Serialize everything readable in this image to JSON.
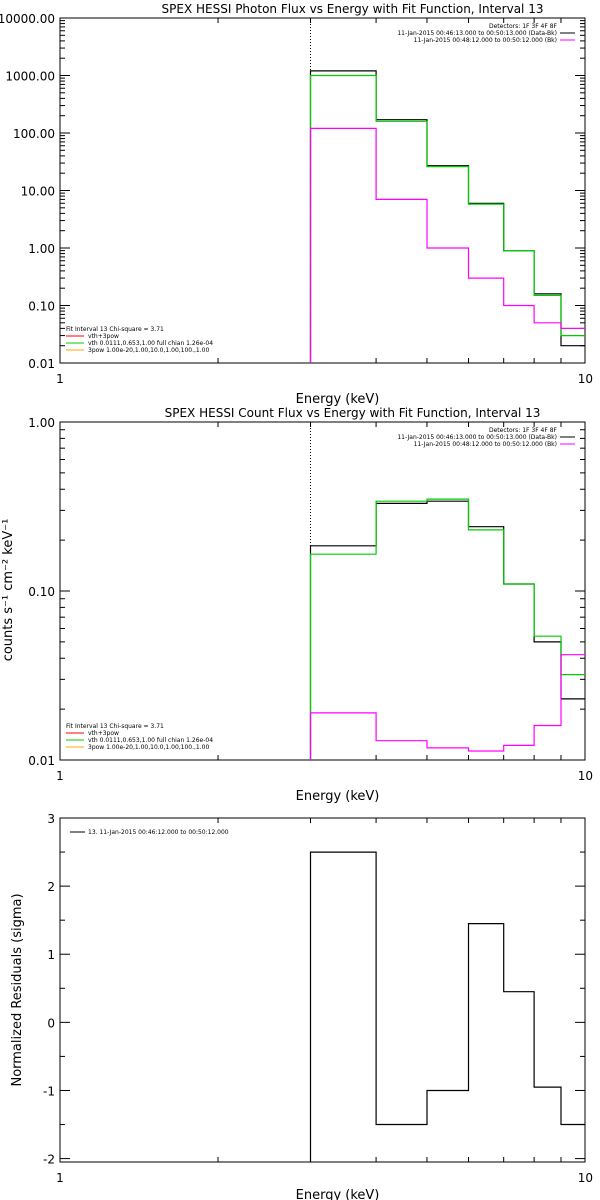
{
  "chart_data": [
    {
      "type": "line",
      "title": "SPEX HESSI Photon Flux vs Energy with Fit Function, Interval 13",
      "xlabel": "Energy (keV)",
      "ylabel": "",
      "xscale": "log",
      "yscale": "log",
      "xlim": [
        1,
        10
      ],
      "ylim": [
        0.01,
        10000
      ],
      "x_ticks": [
        "1",
        "10"
      ],
      "y_ticks": [
        "0.01",
        "0.10",
        "1.00",
        "10.00",
        "100.00",
        "1000.00",
        "10000.00"
      ],
      "x_edges": [
        3,
        4,
        5,
        6,
        7,
        8,
        9,
        10
      ],
      "marker_line_x": 3,
      "legend_top": [
        "Detectors: 1F 3F 4F 8F",
        "11-Jan-2015 00:46:13.000 to 00:50:13.000 (Data-Bk)",
        "11-Jan-2015 00:48:12.000 to 00:50:12.000 (Bk)"
      ],
      "legend_fit": [
        "Fit Interval 13   Chi-square = 3.71",
        "vth+3pow",
        "vth 0.0111,0.653,1.00  full chian 1.26e-04",
        "3pow 1.00e-20,1.00,10.0,1.00,100.,1.00"
      ],
      "series": [
        {
          "name": "11-Jan-2015 00:46:13.000 to 00:50:13.000 (Data-Bk)",
          "color": "#000000",
          "values": [
            1200,
            170,
            27,
            6,
            0.9,
            0.16,
            0.02
          ]
        },
        {
          "name": "vth 0.0111,0.653,1.00  full chian 1.26e-04",
          "color": "#00cc00",
          "values": [
            1000,
            160,
            26,
            5.8,
            0.9,
            0.15,
            0.03
          ]
        },
        {
          "name": "11-Jan-2015 00:48:12.000 to 00:50:12.000 (Bk)",
          "color": "#ff00ff",
          "values": [
            120,
            7,
            1,
            0.3,
            0.1,
            0.05,
            0.04
          ]
        }
      ]
    },
    {
      "type": "line",
      "title": "SPEX HESSI Count Flux vs Energy with Fit Function, Interval 13",
      "xlabel": "Energy (keV)",
      "ylabel": "counts s⁻¹ cm⁻² keV⁻¹",
      "xscale": "log",
      "yscale": "log",
      "xlim": [
        1,
        10
      ],
      "ylim": [
        0.01,
        1.0
      ],
      "x_ticks": [
        "1",
        "10"
      ],
      "y_ticks": [
        "0.01",
        "0.10",
        "1.00"
      ],
      "x_edges": [
        3,
        4,
        5,
        6,
        7,
        8,
        9,
        10
      ],
      "marker_line_x": 3,
      "legend_top": [
        "Detectors: 1F 3F 4F 8F",
        "11-Jan-2015 00:46:13.000 to 00:50:13.000 (Data-Bk)",
        "11-Jan-2015 00:48:12.000 to 00:50:12.000 (Bk)"
      ],
      "legend_fit": [
        "Fit Interval 13   Chi-square = 3.71",
        "vth+3pow",
        "vth 0.0111,0.653,1.00  full chian 1.26e-04",
        "3pow 1.00e-20,1.00,10.0,1.00,100.,1.00"
      ],
      "series": [
        {
          "name": "11-Jan-2015 00:46:13.000 to 00:50:13.000 (Data-Bk)",
          "color": "#000000",
          "values": [
            0.185,
            0.33,
            0.34,
            0.24,
            0.11,
            0.05,
            0.023
          ]
        },
        {
          "name": "vth 0.0111,0.653,1.00  full chian 1.26e-04",
          "color": "#00cc00",
          "values": [
            0.165,
            0.34,
            0.35,
            0.23,
            0.11,
            0.054,
            0.032
          ]
        },
        {
          "name": "11-Jan-2015 00:48:12.000 to 00:50:12.000 (Bk)",
          "color": "#ff00ff",
          "values": [
            0.019,
            0.013,
            0.0118,
            0.0113,
            0.0122,
            0.016,
            0.042
          ]
        }
      ]
    },
    {
      "type": "line",
      "title": "",
      "xlabel": "Energy (keV)",
      "ylabel": "Normalized Residuals (sigma)",
      "xscale": "log",
      "yscale": "linear",
      "xlim": [
        1,
        10
      ],
      "ylim": [
        -2.05,
        3.0
      ],
      "x_ticks": [
        "1",
        "10"
      ],
      "y_ticks": [
        "-2",
        "-1",
        "0",
        "1",
        "2",
        "3"
      ],
      "x_edges": [
        3,
        4,
        5,
        6,
        7,
        8,
        9,
        10
      ],
      "legend": [
        "13. 11-Jan-2015 00:46:12.000 to 00:50:12.000"
      ],
      "series": [
        {
          "name": "13. 11-Jan-2015 00:46:12.000 to 00:50:12.000",
          "color": "#000000",
          "values": [
            2.5,
            -1.5,
            -1.0,
            1.45,
            0.45,
            -0.95,
            -1.5
          ]
        }
      ]
    }
  ]
}
